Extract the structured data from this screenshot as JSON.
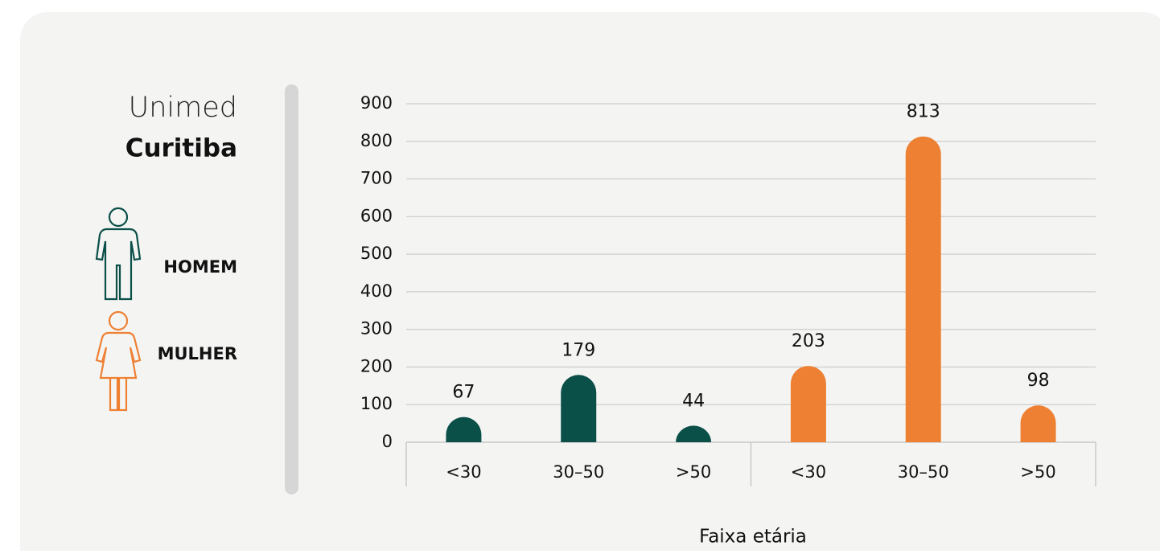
{
  "chart_data": {
    "type": "bar",
    "title": "Unimed",
    "subtitle": "Curitiba",
    "x_label": "Faixa etária",
    "categories": [
      "<30",
      "30–50",
      ">50",
      "<30",
      "30–50",
      ">50"
    ],
    "series": [
      {
        "name": "HOMEM",
        "color": "#0b4f49",
        "values": [
          67,
          179,
          44,
          null,
          null,
          null
        ]
      },
      {
        "name": "MULHER",
        "color": "#ee8033",
        "values": [
          null,
          null,
          null,
          203,
          813,
          98
        ]
      }
    ],
    "ylim": [
      0,
      900
    ],
    "yticks": [
      0,
      100,
      200,
      300,
      400,
      500,
      600,
      700,
      800,
      900
    ],
    "grid": true
  }
}
